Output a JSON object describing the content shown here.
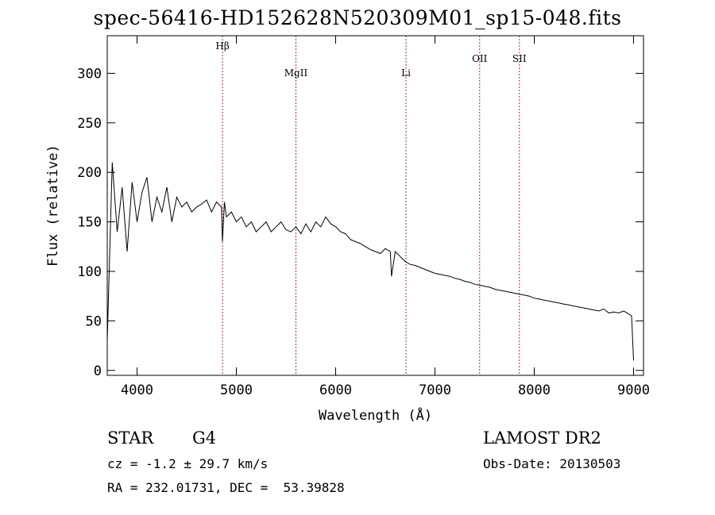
{
  "chart_data": {
    "type": "line",
    "title": "spec-56416-HD152628N520309M01_sp15-048.fits",
    "xlabel": "Wavelength (Å)",
    "ylabel": "Flux (relative)",
    "xlim": [
      3700,
      9100
    ],
    "ylim": [
      -5,
      338
    ],
    "x_ticks": [
      4000,
      5000,
      6000,
      7000,
      8000,
      9000
    ],
    "y_ticks": [
      0,
      50,
      100,
      150,
      200,
      250,
      300
    ],
    "grid": false,
    "series": [
      {
        "name": "",
        "color": "#000000",
        "x": [
          3700,
          3750,
          3800,
          3850,
          3900,
          3950,
          4000,
          4050,
          4100,
          4150,
          4200,
          4250,
          4300,
          4350,
          4400,
          4450,
          4500,
          4550,
          4600,
          4650,
          4700,
          4750,
          4800,
          4850,
          4860,
          4880,
          4900,
          4950,
          5000,
          5050,
          5100,
          5150,
          5200,
          5250,
          5300,
          5350,
          5400,
          5450,
          5500,
          5550,
          5600,
          5650,
          5700,
          5750,
          5800,
          5850,
          5900,
          5950,
          6000,
          6050,
          6100,
          6150,
          6200,
          6250,
          6300,
          6350,
          6400,
          6450,
          6500,
          6550,
          6562,
          6600,
          6650,
          6700,
          6750,
          6800,
          6850,
          6900,
          6950,
          7000,
          7050,
          7100,
          7150,
          7200,
          7250,
          7300,
          7350,
          7400,
          7450,
          7500,
          7550,
          7600,
          7650,
          7700,
          7750,
          7800,
          7850,
          7900,
          7950,
          8000,
          8050,
          8100,
          8150,
          8200,
          8250,
          8300,
          8350,
          8400,
          8450,
          8500,
          8550,
          8600,
          8650,
          8700,
          8750,
          8800,
          8850,
          8900,
          8950,
          8980,
          9000
        ],
        "values": [
          30,
          210,
          140,
          185,
          120,
          190,
          150,
          180,
          195,
          150,
          175,
          160,
          185,
          150,
          175,
          165,
          170,
          160,
          165,
          168,
          172,
          160,
          170,
          165,
          130,
          170,
          155,
          160,
          150,
          155,
          145,
          150,
          140,
          145,
          150,
          140,
          145,
          150,
          142,
          140,
          145,
          138,
          148,
          140,
          150,
          145,
          155,
          148,
          145,
          140,
          138,
          132,
          130,
          128,
          125,
          122,
          120,
          118,
          123,
          120,
          95,
          120,
          115,
          110,
          107,
          106,
          104,
          102,
          100,
          98,
          97,
          96,
          95,
          93,
          92,
          90,
          89,
          87,
          86,
          85,
          84,
          82,
          81,
          80,
          79,
          78,
          77,
          76,
          75,
          73,
          72,
          71,
          70,
          69,
          68,
          67,
          66,
          65,
          64,
          63,
          62,
          61,
          60,
          62,
          58,
          59,
          58,
          60,
          57,
          55,
          10
        ]
      }
    ],
    "lines": [
      {
        "label": "Hβ",
        "x": 4861
      },
      {
        "label": "MgII",
        "x": 5600
      },
      {
        "label": "Li",
        "x": 6708
      },
      {
        "label": "OII",
        "x": 7450
      },
      {
        "label": "SII",
        "x": 7850
      }
    ]
  },
  "info": {
    "class_label": "STAR",
    "subclass": "G4",
    "survey": "LAMOST DR2",
    "cz": "cz = -1.2 ± 29.7 km/s",
    "obs_date": "Obs-Date: 20130503",
    "radec": "RA = 232.01731, DEC =  53.39828"
  }
}
